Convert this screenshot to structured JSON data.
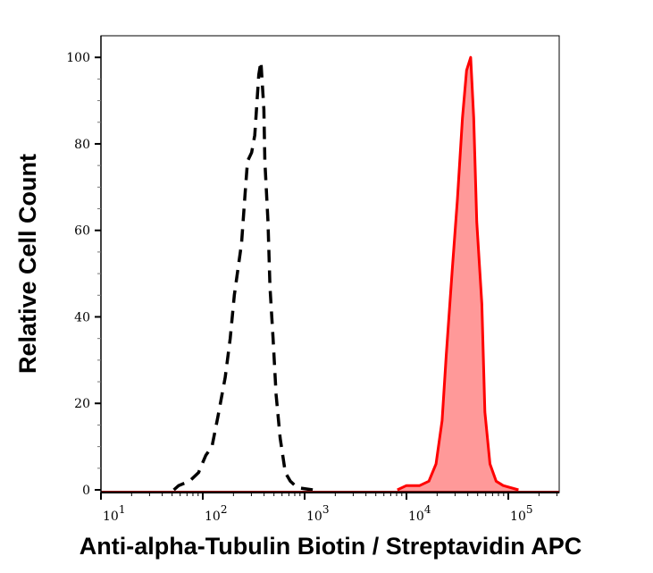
{
  "chart_data": {
    "type": "area",
    "title": "",
    "xlabel": "Anti-alpha-Tubulin Biotin / Streptavidin APC",
    "ylabel": "Relative Cell Count",
    "x_scale": "log",
    "xlim": [
      10,
      316000
    ],
    "ylim": [
      0,
      105
    ],
    "grid": false,
    "x_ticks": [
      {
        "value": 10,
        "base": "10",
        "exp": "1"
      },
      {
        "value": 100,
        "base": "10",
        "exp": "2"
      },
      {
        "value": 1000,
        "base": "10",
        "exp": "3"
      },
      {
        "value": 10000,
        "base": "10",
        "exp": "4"
      },
      {
        "value": 100000,
        "base": "10",
        "exp": "5"
      }
    ],
    "y_ticks": [
      "0",
      "20",
      "40",
      "60",
      "80",
      "100"
    ],
    "series": [
      {
        "style": "dashed-line",
        "color": "#000000",
        "x": [
          52,
          58,
          74,
          91,
          107,
          123,
          141,
          166,
          186,
          204,
          240,
          263,
          275,
          302,
          324,
          355,
          372,
          398,
          407,
          437,
          457,
          490,
          525,
          575,
          646,
          724,
          851,
          1202
        ],
        "y": [
          0,
          1,
          2,
          4,
          8,
          10,
          17,
          26,
          35,
          45,
          57,
          70,
          76,
          78,
          82,
          96,
          99,
          88,
          76,
          62,
          47,
          35,
          22,
          12,
          4,
          2,
          0.5,
          0
        ]
      },
      {
        "style": "filled-area",
        "color": "#ff0000",
        "fill": "#ff9999",
        "x": [
          8128,
          10000,
          13490,
          16600,
          19500,
          22390,
          24550,
          28180,
          31620,
          35480,
          38900,
          42660,
          45710,
          48980,
          54950,
          58880,
          66070,
          75860,
          89130,
          125900
        ],
        "y": [
          0,
          1,
          1,
          2,
          6,
          16,
          31,
          51,
          67,
          86,
          97,
          100,
          86,
          62,
          43,
          18,
          6,
          2,
          1,
          0
        ]
      }
    ]
  }
}
